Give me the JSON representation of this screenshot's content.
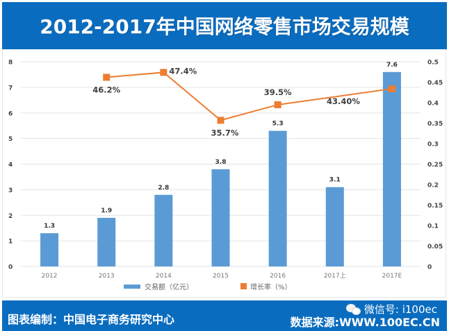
{
  "header": {
    "title": "2012-2017年中国网络零售市场交易规模"
  },
  "footer": {
    "compiled_by": "图表编制：中国电子商务研究中心",
    "source": "数据来源:WWW.100EC.CN",
    "wechat": "微信号: i100ec"
  },
  "chart_data": {
    "type": "bar",
    "title": "2012-2017年中国网络零售市场交易规模",
    "categories": [
      "2012",
      "2013",
      "2014",
      "2015",
      "2016",
      "2017上",
      "2017E"
    ],
    "series": [
      {
        "name": "交易额（亿元）",
        "type": "bar",
        "axis": "left",
        "color": "#5b9bd5",
        "values": [
          1.3,
          1.9,
          2.8,
          3.8,
          5.3,
          3.1,
          7.6
        ],
        "labels": [
          "1.3",
          "1.9",
          "2.8",
          "3.8",
          "5.3",
          "3.1",
          "7.6"
        ]
      },
      {
        "name": "增长率（%）",
        "type": "line",
        "axis": "right",
        "color": "#ed7d31",
        "values": [
          null,
          0.462,
          0.474,
          0.357,
          0.395,
          null,
          0.434
        ],
        "labels": [
          "",
          "46.2%",
          "47.4%",
          "35.7%",
          "39.5%",
          "",
          "43.40%"
        ]
      }
    ],
    "y_left": {
      "min": 0,
      "max": 8,
      "ticks": [
        "0",
        "1",
        "2",
        "3",
        "4",
        "5",
        "6",
        "7",
        "8"
      ]
    },
    "y_right": {
      "min": 0,
      "max": 0.5,
      "ticks": [
        "0",
        "0.05",
        "0.1",
        "0.15",
        "0.2",
        "0.25",
        "0.3",
        "0.35",
        "0.4",
        "0.45",
        "0.5"
      ]
    },
    "grid": true,
    "legend": "bottom-center"
  }
}
